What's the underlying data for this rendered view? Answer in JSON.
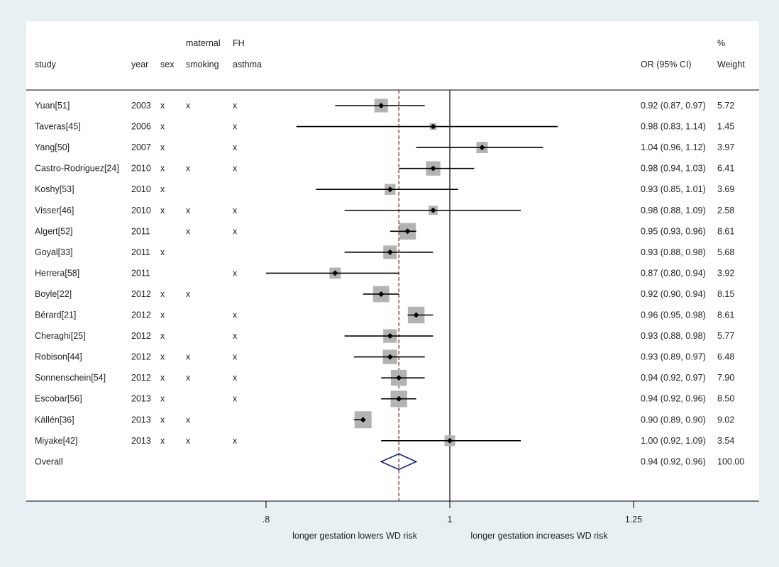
{
  "chart_data": {
    "type": "forest",
    "headers": {
      "study": "study",
      "year": "year",
      "sex": "sex",
      "smoking": [
        "maternal",
        "smoking"
      ],
      "asthma": [
        "FH",
        "asthma"
      ],
      "or": "OR (95% CI)",
      "weight": [
        "%",
        "Weight"
      ]
    },
    "rows": [
      {
        "study": "Yuan[51]",
        "year": "2003",
        "sex": "x",
        "smoking": "x",
        "asthma": "x",
        "or": 0.92,
        "lo": 0.87,
        "hi": 0.97,
        "or_text": "0.92 (0.87, 0.97)",
        "weight": 5.72,
        "weight_text": "5.72"
      },
      {
        "study": "Taveras[45]",
        "year": "2006",
        "sex": "x",
        "smoking": "",
        "asthma": "x",
        "or": 0.98,
        "lo": 0.83,
        "hi": 1.14,
        "or_text": "0.98 (0.83, 1.14)",
        "weight": 1.45,
        "weight_text": "1.45"
      },
      {
        "study": "Yang[50]",
        "year": "2007",
        "sex": "x",
        "smoking": "",
        "asthma": "x",
        "or": 1.04,
        "lo": 0.96,
        "hi": 1.12,
        "or_text": "1.04 (0.96, 1.12)",
        "weight": 3.97,
        "weight_text": "3.97"
      },
      {
        "study": "Castro-Rodriguez[24]",
        "year": "2010",
        "sex": "x",
        "smoking": "x",
        "asthma": "x",
        "or": 0.98,
        "lo": 0.94,
        "hi": 1.03,
        "or_text": "0.98 (0.94, 1.03)",
        "weight": 6.41,
        "weight_text": "6.41"
      },
      {
        "study": "Koshy[53]",
        "year": "2010",
        "sex": "x",
        "smoking": "",
        "asthma": "",
        "or": 0.93,
        "lo": 0.85,
        "hi": 1.01,
        "or_text": "0.93 (0.85, 1.01)",
        "weight": 3.69,
        "weight_text": "3.69"
      },
      {
        "study": "Visser[46]",
        "year": "2010",
        "sex": "x",
        "smoking": "x",
        "asthma": "x",
        "or": 0.98,
        "lo": 0.88,
        "hi": 1.09,
        "or_text": "0.98 (0.88, 1.09)",
        "weight": 2.58,
        "weight_text": "2.58"
      },
      {
        "study": "Algert[52]",
        "year": "2011",
        "sex": "",
        "smoking": "x",
        "asthma": "x",
        "or": 0.95,
        "lo": 0.93,
        "hi": 0.96,
        "or_text": "0.95 (0.93, 0.96)",
        "weight": 8.61,
        "weight_text": "8.61"
      },
      {
        "study": "Goyal[33]",
        "year": "2011",
        "sex": "x",
        "smoking": "",
        "asthma": "",
        "or": 0.93,
        "lo": 0.88,
        "hi": 0.98,
        "or_text": "0.93 (0.88, 0.98)",
        "weight": 5.68,
        "weight_text": "5.68"
      },
      {
        "study": "Herrera[58]",
        "year": "2011",
        "sex": "",
        "smoking": "",
        "asthma": "x",
        "or": 0.87,
        "lo": 0.8,
        "hi": 0.94,
        "or_text": "0.87 (0.80, 0.94)",
        "weight": 3.92,
        "weight_text": "3.92"
      },
      {
        "study": "Boyle[22]",
        "year": "2012",
        "sex": "x",
        "smoking": "x",
        "asthma": "",
        "or": 0.92,
        "lo": 0.9,
        "hi": 0.94,
        "or_text": "0.92 (0.90, 0.94)",
        "weight": 8.15,
        "weight_text": "8.15"
      },
      {
        "study": "Bérard[21]",
        "year": "2012",
        "sex": "x",
        "smoking": "",
        "asthma": "x",
        "or": 0.96,
        "lo": 0.95,
        "hi": 0.98,
        "or_text": "0.96 (0.95, 0.98)",
        "weight": 8.61,
        "weight_text": "8.61"
      },
      {
        "study": "Cheraghi[25]",
        "year": "2012",
        "sex": "x",
        "smoking": "",
        "asthma": "x",
        "or": 0.93,
        "lo": 0.88,
        "hi": 0.98,
        "or_text": "0.93 (0.88, 0.98)",
        "weight": 5.77,
        "weight_text": "5.77"
      },
      {
        "study": "Robison[44]",
        "year": "2012",
        "sex": "x",
        "smoking": "x",
        "asthma": "x",
        "or": 0.93,
        "lo": 0.89,
        "hi": 0.97,
        "or_text": "0.93 (0.89, 0.97)",
        "weight": 6.48,
        "weight_text": "6.48"
      },
      {
        "study": "Sonnenschein[54]",
        "year": "2012",
        "sex": "x",
        "smoking": "x",
        "asthma": "x",
        "or": 0.94,
        "lo": 0.92,
        "hi": 0.97,
        "or_text": "0.94 (0.92, 0.97)",
        "weight": 7.9,
        "weight_text": "7.90"
      },
      {
        "study": "Escobar[56]",
        "year": "2013",
        "sex": "x",
        "smoking": "",
        "asthma": "x",
        "or": 0.94,
        "lo": 0.92,
        "hi": 0.96,
        "or_text": "0.94 (0.92, 0.96)",
        "weight": 8.5,
        "weight_text": "8.50"
      },
      {
        "study": "Källén[36]",
        "year": "2013",
        "sex": "x",
        "smoking": "x",
        "asthma": "",
        "or": 0.9,
        "lo": 0.89,
        "hi": 0.9,
        "or_text": "0.90 (0.89, 0.90)",
        "weight": 9.02,
        "weight_text": "9.02"
      },
      {
        "study": "Miyake[42]",
        "year": "2013",
        "sex": "x",
        "smoking": "x",
        "asthma": "x",
        "or": 1.0,
        "lo": 0.92,
        "hi": 1.09,
        "or_text": "1.00 (0.92, 1.09)",
        "weight": 3.54,
        "weight_text": "3.54"
      }
    ],
    "overall": {
      "study": "Overall",
      "or": 0.94,
      "lo": 0.92,
      "hi": 0.96,
      "or_text": "0.94 (0.92, 0.96)",
      "weight_text": "100.00"
    },
    "x_scale": "log",
    "xlim": [
      0.75,
      1.38
    ],
    "x_ticks": [
      {
        "value": 0.8,
        "label": ".8"
      },
      {
        "value": 1,
        "label": "1"
      },
      {
        "value": 1.25,
        "label": "1.25"
      }
    ],
    "null_line": 1,
    "pooled_line": 0.94,
    "annotations": {
      "left": "longer gestation lowers WD risk",
      "right": "longer gestation increases WD risk"
    },
    "colors": {
      "background": "#e9f0f4",
      "panel": "#ffffff",
      "box": "#b3b3b3",
      "point": "#000000",
      "pooled_line": "#8b3a3a",
      "diamond": "#1a237e"
    }
  }
}
